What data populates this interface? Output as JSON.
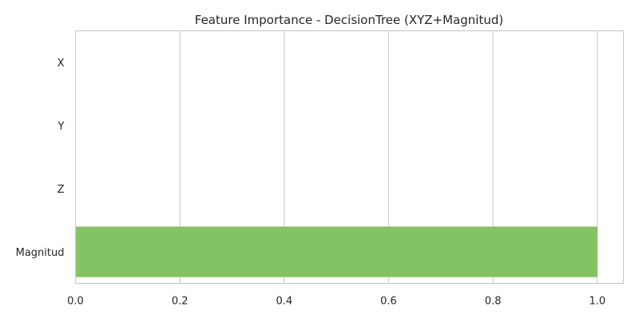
{
  "chart_data": {
    "type": "bar",
    "orientation": "horizontal",
    "title": "Feature Importance - DecisionTree (XYZ+Magnitud)",
    "xlabel": "",
    "ylabel": "",
    "categories": [
      "X",
      "Y",
      "Z",
      "Magnitud"
    ],
    "values": [
      0.0,
      0.0,
      0.0,
      1.0
    ],
    "bar_colors": [
      "#3d3b8a",
      "#2c7fb8",
      "#2ca58d",
      "#83c363"
    ],
    "xlim": [
      0,
      1.05
    ],
    "xticks": [
      "0.0",
      "0.2",
      "0.4",
      "0.6",
      "0.8",
      "1.0"
    ],
    "grid": "vertical",
    "legend": "none"
  }
}
